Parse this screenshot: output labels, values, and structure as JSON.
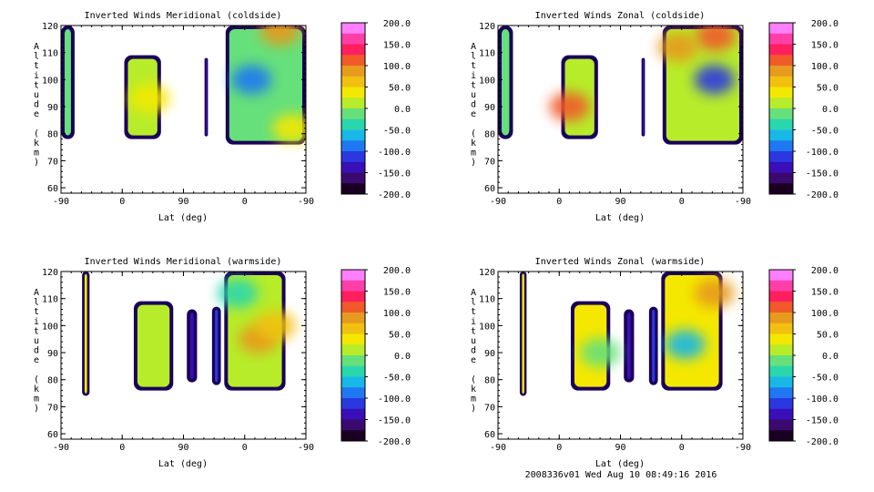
{
  "figure": {
    "footer": "2008336v01 Wed Aug 10 08:49:16 2016"
  },
  "colorbar": {
    "ticks": [
      "200.0",
      "150.0",
      "100.0",
      "50.0",
      "0.0",
      "-50.0",
      "-100.0",
      "-150.0",
      "-200.0"
    ],
    "colors": [
      "#ff7fff",
      "#ff3fa8",
      "#ff1f5f",
      "#f05a2a",
      "#e69a1e",
      "#f2c010",
      "#f4e800",
      "#b7ec2a",
      "#66e07a",
      "#2ad7ad",
      "#19b7e6",
      "#1f78f2",
      "#2b38e0",
      "#3a0fb8",
      "#3b0a6e",
      "#1a0020"
    ]
  },
  "chart_data": [
    {
      "type": "heatmap",
      "title": "Inverted Winds Meridional (coldside)",
      "xlabel": "Lat (deg)",
      "ylabel": "Altitude (km)",
      "xticks": [
        "-90",
        "0",
        "90",
        "0",
        "-90"
      ],
      "yticks": [
        "60",
        "70",
        "80",
        "90",
        "100",
        "110",
        "120"
      ],
      "ylim": [
        58,
        120
      ],
      "clim": [
        -200,
        200
      ],
      "blocks": [
        {
          "x": [
            -90,
            -70
          ],
          "y": [
            78,
            120
          ],
          "value": -10
        },
        {
          "x": [
            3,
            57
          ],
          "y": [
            78,
            109
          ],
          "value": 10
        },
        {
          "x": [
            121,
            126
          ],
          "y": [
            79,
            108
          ],
          "value": -130
        },
        {
          "x": [
            152,
            270
          ],
          "y": [
            76,
            120
          ],
          "value": -20
        }
      ],
      "blobs": [
        {
          "x": 40,
          "y": 93,
          "value": 40
        },
        {
          "x": 232,
          "y": 118,
          "value": 90
        },
        {
          "x": 190,
          "y": 100,
          "value": -75
        },
        {
          "x": 250,
          "y": 82,
          "value": 45
        }
      ]
    },
    {
      "type": "heatmap",
      "title": "Inverted Winds Zonal (coldside)",
      "xlabel": "Lat (deg)",
      "ylabel": "Altitude (km)",
      "xticks": [
        "-90",
        "0",
        "90",
        "0",
        "-90"
      ],
      "yticks": [
        "60",
        "70",
        "80",
        "90",
        "100",
        "110",
        "120"
      ],
      "ylim": [
        58,
        120
      ],
      "clim": [
        -200,
        200
      ],
      "blocks": [
        {
          "x": [
            -90,
            -68
          ],
          "y": [
            78,
            120
          ],
          "value": -20
        },
        {
          "x": [
            3,
            57
          ],
          "y": [
            78,
            109
          ],
          "value": 20
        },
        {
          "x": [
            121,
            126
          ],
          "y": [
            79,
            108
          ],
          "value": -140
        },
        {
          "x": [
            152,
            270
          ],
          "y": [
            76,
            120
          ],
          "value": 10
        }
      ],
      "blobs": [
        {
          "x": 15,
          "y": 90,
          "value": 120
        },
        {
          "x": 228,
          "y": 100,
          "value": -120
        },
        {
          "x": 230,
          "y": 116,
          "value": 110
        },
        {
          "x": 175,
          "y": 112,
          "value": 80
        }
      ]
    },
    {
      "type": "heatmap",
      "title": "Inverted Winds Meridional (warmside)",
      "xlabel": "Lat (deg)",
      "ylabel": "Altitude (km)",
      "xticks": [
        "-90",
        "0",
        "90",
        "0",
        "-90"
      ],
      "yticks": [
        "60",
        "70",
        "80",
        "90",
        "100",
        "110",
        "120"
      ],
      "ylim": [
        58,
        120
      ],
      "clim": [
        -200,
        200
      ],
      "blocks": [
        {
          "x": [
            -59,
            -48
          ],
          "y": [
            74,
            120
          ],
          "value": 30
        },
        {
          "x": [
            17,
            75
          ],
          "y": [
            76,
            109
          ],
          "value": 10
        },
        {
          "x": [
            95,
            110
          ],
          "y": [
            79,
            106
          ],
          "value": -130
        },
        {
          "x": [
            132,
            145
          ],
          "y": [
            78,
            107
          ],
          "value": -110
        },
        {
          "x": [
            150,
            240
          ],
          "y": [
            76,
            120
          ],
          "value": 20
        }
      ],
      "blobs": [
        {
          "x": 200,
          "y": 95,
          "value": 80
        },
        {
          "x": 170,
          "y": 112,
          "value": -40
        },
        {
          "x": 225,
          "y": 100,
          "value": 60
        }
      ]
    },
    {
      "type": "heatmap",
      "title": "Inverted Winds Zonal (warmside)",
      "xlabel": "Lat (deg)",
      "ylabel": "Altitude (km)",
      "xticks": [
        "-90",
        "0",
        "90",
        "0",
        "-90"
      ],
      "yticks": [
        "60",
        "70",
        "80",
        "90",
        "100",
        "110",
        "120"
      ],
      "ylim": [
        58,
        120
      ],
      "clim": [
        -200,
        200
      ],
      "blocks": [
        {
          "x": [
            -58,
            -48
          ],
          "y": [
            74,
            120
          ],
          "value": 40
        },
        {
          "x": [
            17,
            75
          ],
          "y": [
            76,
            109
          ],
          "value": 40
        },
        {
          "x": [
            95,
            110
          ],
          "y": [
            79,
            106
          ],
          "value": -130
        },
        {
          "x": [
            132,
            145
          ],
          "y": [
            78,
            107
          ],
          "value": -100
        },
        {
          "x": [
            150,
            240
          ],
          "y": [
            76,
            120
          ],
          "value": 50
        }
      ],
      "blobs": [
        {
          "x": 60,
          "y": 90,
          "value": -20
        },
        {
          "x": 185,
          "y": 93,
          "value": -70
        },
        {
          "x": 228,
          "y": 112,
          "value": 100
        }
      ]
    }
  ]
}
